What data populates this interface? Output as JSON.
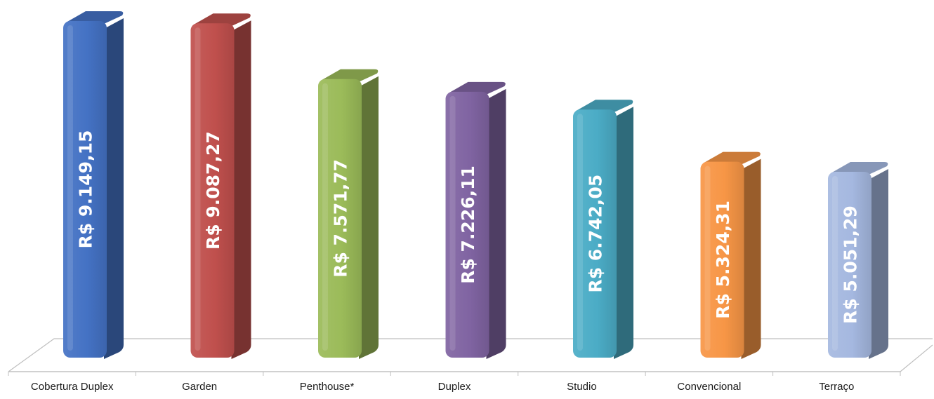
{
  "chart_data": {
    "type": "bar",
    "title": "",
    "xlabel": "",
    "ylabel": "",
    "categories": [
      "Cobertura Duplex",
      "Garden",
      "Penthouse*",
      "Duplex",
      "Studio",
      "Convencional",
      "Terraço"
    ],
    "values": [
      9149.15,
      9087.27,
      7571.77,
      7226.11,
      6742.05,
      5324.31,
      5051.29
    ],
    "value_labels": [
      "R$ 9.149,15",
      "R$ 9.087,27",
      "R$ 7.571,77",
      "R$ 7.226,11",
      "R$ 6.742,05",
      "R$ 5.324,31",
      "R$ 5.051,29"
    ],
    "ylim": [
      0,
      9149.15
    ],
    "grid": false,
    "legend": "none",
    "colors": [
      "#4472C4",
      "#C0504D",
      "#9BBB59",
      "#8064A2",
      "#4BACC6",
      "#F79646",
      "#A5B8E0"
    ]
  }
}
